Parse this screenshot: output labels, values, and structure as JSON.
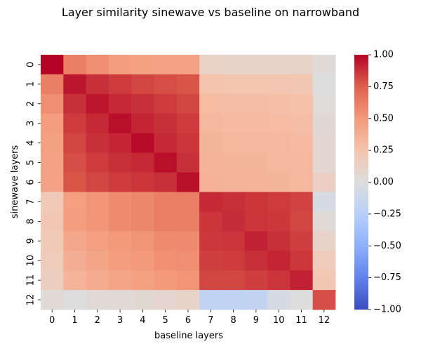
{
  "chart_data": {
    "type": "heatmap",
    "title": "Layer similarity sinewave vs baseline on narrowband",
    "xlabel": "baseline layers",
    "ylabel": "sinewave layers",
    "x_categories": [
      "0",
      "1",
      "2",
      "3",
      "4",
      "5",
      "6",
      "7",
      "8",
      "9",
      "10",
      "11",
      "12"
    ],
    "y_categories": [
      "0",
      "1",
      "2",
      "3",
      "4",
      "5",
      "6",
      "7",
      "8",
      "9",
      "10",
      "11",
      "12"
    ],
    "colormap": "coolwarm",
    "vmin": -1.0,
    "vmax": 1.0,
    "colorbar_ticks": [
      1.0,
      0.75,
      0.5,
      0.25,
      0.0,
      -0.25,
      -0.5,
      -0.75,
      -1.0
    ],
    "colorbar_tick_labels": [
      "1.00",
      "0.75",
      "0.50",
      "0.25",
      "0.00",
      "−0.25",
      "−0.50",
      "−0.75",
      "−1.00"
    ],
    "values": [
      [
        1.0,
        0.62,
        0.55,
        0.48,
        0.46,
        0.45,
        0.45,
        0.12,
        0.1,
        0.1,
        0.1,
        0.1,
        0.03
      ],
      [
        0.62,
        0.95,
        0.88,
        0.85,
        0.82,
        0.8,
        0.78,
        0.25,
        0.24,
        0.24,
        0.23,
        0.22,
        0.0
      ],
      [
        0.55,
        0.88,
        0.95,
        0.9,
        0.88,
        0.85,
        0.82,
        0.3,
        0.29,
        0.29,
        0.28,
        0.27,
        0.02
      ],
      [
        0.48,
        0.85,
        0.9,
        0.97,
        0.91,
        0.88,
        0.85,
        0.32,
        0.31,
        0.31,
        0.3,
        0.29,
        0.05
      ],
      [
        0.46,
        0.82,
        0.88,
        0.91,
        0.98,
        0.9,
        0.87,
        0.34,
        0.33,
        0.33,
        0.32,
        0.31,
        0.07
      ],
      [
        0.45,
        0.8,
        0.85,
        0.88,
        0.9,
        0.97,
        0.88,
        0.35,
        0.34,
        0.34,
        0.33,
        0.32,
        0.07
      ],
      [
        0.45,
        0.78,
        0.82,
        0.85,
        0.87,
        0.88,
        0.97,
        0.36,
        0.35,
        0.35,
        0.34,
        0.33,
        0.14
      ],
      [
        0.2,
        0.47,
        0.52,
        0.56,
        0.58,
        0.62,
        0.62,
        0.9,
        0.88,
        0.87,
        0.85,
        0.83,
        -0.05
      ],
      [
        0.22,
        0.48,
        0.52,
        0.56,
        0.58,
        0.62,
        0.62,
        0.87,
        0.89,
        0.87,
        0.86,
        0.82,
        0.03
      ],
      [
        0.2,
        0.42,
        0.47,
        0.5,
        0.52,
        0.56,
        0.57,
        0.86,
        0.87,
        0.92,
        0.88,
        0.84,
        0.1
      ],
      [
        0.18,
        0.38,
        0.44,
        0.48,
        0.5,
        0.54,
        0.55,
        0.84,
        0.85,
        0.88,
        0.91,
        0.86,
        0.18
      ],
      [
        0.15,
        0.35,
        0.4,
        0.44,
        0.46,
        0.5,
        0.52,
        0.82,
        0.82,
        0.84,
        0.87,
        0.92,
        0.22
      ],
      [
        0.03,
        0.0,
        0.03,
        0.04,
        0.06,
        0.08,
        0.1,
        -0.2,
        -0.2,
        -0.18,
        -0.05,
        0.0,
        0.8
      ]
    ]
  }
}
